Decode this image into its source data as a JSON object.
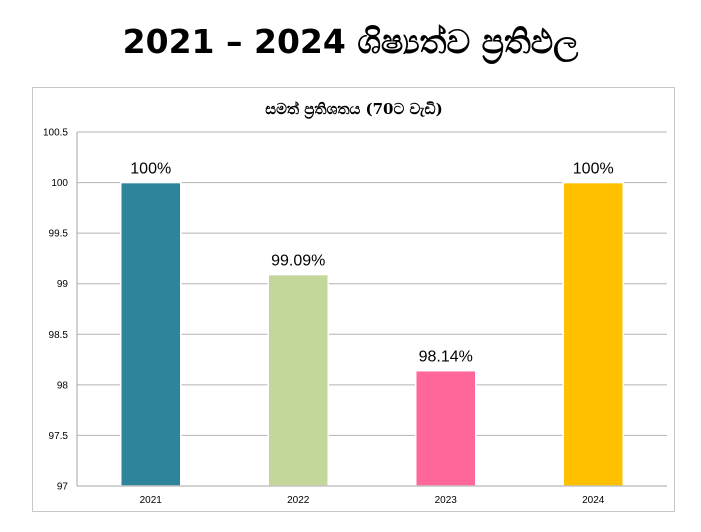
{
  "slide": {
    "title": "2021 – 2024 ශිෂ්‍යත්ව ප්‍රතිඵල"
  },
  "chart_data": {
    "type": "bar",
    "title": "සමත් ප්‍රතිශතය (70ට වැඩි)",
    "categories": [
      "2021",
      "2022",
      "2023",
      "2024"
    ],
    "values": [
      100,
      99.09,
      98.14,
      100
    ],
    "data_labels": [
      "100%",
      "99.09%",
      "98.14%",
      "100%"
    ],
    "colors": [
      "#2E849A",
      "#C4D79B",
      "#FF6699",
      "#FFC000"
    ],
    "ylim": [
      97,
      100.5
    ],
    "yticks": [
      97,
      97.5,
      98,
      98.5,
      99,
      99.5,
      100,
      100.5
    ],
    "ytick_labels": [
      "97",
      "97.5",
      "98",
      "98.5",
      "99",
      "99.5",
      "100",
      "100.5"
    ],
    "xlabel": "",
    "ylabel": "",
    "grid": true,
    "legend": "none"
  }
}
